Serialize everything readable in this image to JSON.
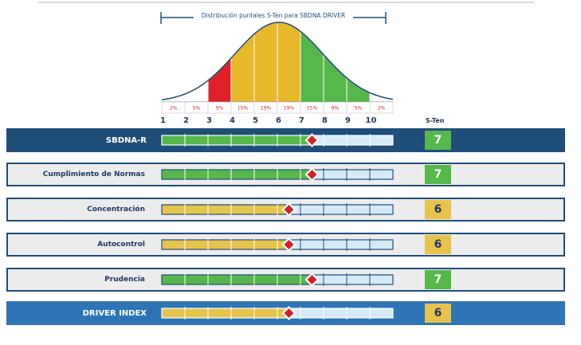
{
  "chart_data": {
    "type": "bar",
    "title": "Distribución puntales S-Ten para SBDNA DRIVER",
    "x_scale": [
      1,
      2,
      3,
      4,
      5,
      6,
      7,
      8,
      9,
      10
    ],
    "score_header": "S-Ten",
    "distribution": [
      {
        "sten": 1,
        "percent": "2%"
      },
      {
        "sten": 2,
        "percent": "5%"
      },
      {
        "sten": 3,
        "percent": "9%"
      },
      {
        "sten": 4,
        "percent": "15%"
      },
      {
        "sten": 5,
        "percent": "19%"
      },
      {
        "sten": 6,
        "percent": "19%"
      },
      {
        "sten": 7,
        "percent": "15%"
      },
      {
        "sten": 8,
        "percent": "9%"
      },
      {
        "sten": 9,
        "percent": "5%"
      },
      {
        "sten": 10,
        "percent": "2%"
      }
    ],
    "distribution_colors": {
      "red": "#e0212a",
      "yellow": "#e6b82a",
      "green": "#56b84b",
      "curve": "#1f4e79"
    },
    "rows": [
      {
        "label": "SBDNA-R",
        "score": 7,
        "style": "dark"
      },
      {
        "label": "Cumplimiento de Normas",
        "score": 7,
        "style": "light"
      },
      {
        "label": "Concentración",
        "score": 6,
        "style": "light"
      },
      {
        "label": "Autocontrol",
        "score": 6,
        "style": "light"
      },
      {
        "label": "Prudencia",
        "score": 7,
        "style": "light"
      },
      {
        "label": "DRIVER INDEX",
        "score": 6,
        "style": "blue"
      }
    ],
    "colors": {
      "row_dark": "#1f4e79",
      "row_light": "#ececec",
      "row_blue": "#2e75b6",
      "fill_green": "#56b84b",
      "fill_yellow": "#e6c34a",
      "track_empty": "#d6ebf8",
      "marker": "#d42027",
      "score_green": "#56b84b",
      "score_yellow": "#e6c34a"
    }
  }
}
